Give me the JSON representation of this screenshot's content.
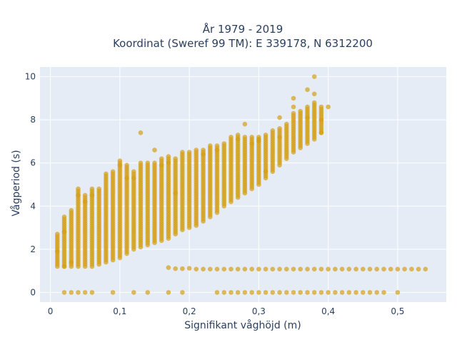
{
  "chart_data": {
    "type": "scatter",
    "title_line1": "År 1979 - 2019",
    "title_line2": "Koordinat (Sweref 99 TM): E 339178, N 6312200",
    "xlabel": "Signifikant våghöjd (m)",
    "ylabel": "Vågperiod (s)",
    "xlim": [
      -0.015,
      0.57
    ],
    "ylim": [
      -0.45,
      10.45
    ],
    "x_ticks": [
      {
        "value": 0,
        "label": "0"
      },
      {
        "value": 0.1,
        "label": "0,1"
      },
      {
        "value": 0.2,
        "label": "0,2"
      },
      {
        "value": 0.3,
        "label": "0,3"
      },
      {
        "value": 0.4,
        "label": "0,4"
      },
      {
        "value": 0.5,
        "label": "0,5"
      }
    ],
    "y_ticks": [
      {
        "value": 0,
        "label": "0"
      },
      {
        "value": 2,
        "label": "2"
      },
      {
        "value": 4,
        "label": "4"
      },
      {
        "value": 6,
        "label": "6"
      },
      {
        "value": 8,
        "label": "8"
      },
      {
        "value": 10,
        "label": "10"
      }
    ],
    "grid": true,
    "colors": {
      "plot_bg": "#e5ecf6",
      "grid": "#ffffff",
      "marker": "#d4a017",
      "text": "#2a3f5f"
    },
    "series": [
      {
        "marker_opacity": 0.7,
        "main_columns": [
          {
            "x": 0.01,
            "ymin": 1.2,
            "ymax": 2.7
          },
          {
            "x": 0.02,
            "ymin": 1.2,
            "ymax": 3.5
          },
          {
            "x": 0.03,
            "ymin": 1.2,
            "ymax": 3.8
          },
          {
            "x": 0.04,
            "ymin": 1.2,
            "ymax": 4.8
          },
          {
            "x": 0.05,
            "ymin": 1.2,
            "ymax": 4.5
          },
          {
            "x": 0.06,
            "ymin": 1.2,
            "ymax": 4.8
          },
          {
            "x": 0.07,
            "ymin": 1.3,
            "ymax": 4.8
          },
          {
            "x": 0.08,
            "ymin": 1.4,
            "ymax": 5.5
          },
          {
            "x": 0.09,
            "ymin": 1.5,
            "ymax": 5.5
          },
          {
            "x": 0.1,
            "ymin": 1.6,
            "ymax": 6.1
          },
          {
            "x": 0.11,
            "ymin": 1.8,
            "ymax": 5.9
          },
          {
            "x": 0.12,
            "ymin": 2.0,
            "ymax": 5.6
          },
          {
            "x": 0.13,
            "ymin": 2.1,
            "ymax": 6.0
          },
          {
            "x": 0.14,
            "ymin": 2.2,
            "ymax": 5.9
          },
          {
            "x": 0.15,
            "ymin": 2.3,
            "ymax": 6.0
          },
          {
            "x": 0.16,
            "ymin": 2.4,
            "ymax": 6.2
          },
          {
            "x": 0.17,
            "ymin": 2.5,
            "ymax": 6.3
          },
          {
            "x": 0.18,
            "ymin": 2.7,
            "ymax": 6.2
          },
          {
            "x": 0.19,
            "ymin": 2.9,
            "ymax": 6.5
          },
          {
            "x": 0.2,
            "ymin": 3.0,
            "ymax": 6.5
          },
          {
            "x": 0.21,
            "ymin": 3.1,
            "ymax": 6.6
          },
          {
            "x": 0.22,
            "ymin": 3.3,
            "ymax": 6.6
          },
          {
            "x": 0.23,
            "ymin": 3.5,
            "ymax": 6.8
          },
          {
            "x": 0.24,
            "ymin": 3.7,
            "ymax": 6.8
          },
          {
            "x": 0.25,
            "ymin": 4.0,
            "ymax": 6.9
          },
          {
            "x": 0.26,
            "ymin": 4.2,
            "ymax": 7.2
          },
          {
            "x": 0.27,
            "ymin": 4.4,
            "ymax": 7.3
          },
          {
            "x": 0.28,
            "ymin": 4.6,
            "ymax": 7.2
          },
          {
            "x": 0.29,
            "ymin": 4.8,
            "ymax": 7.2
          },
          {
            "x": 0.3,
            "ymin": 5.0,
            "ymax": 7.2
          },
          {
            "x": 0.31,
            "ymin": 5.3,
            "ymax": 7.3
          },
          {
            "x": 0.32,
            "ymin": 5.6,
            "ymax": 7.5
          },
          {
            "x": 0.33,
            "ymin": 5.9,
            "ymax": 7.6
          },
          {
            "x": 0.34,
            "ymin": 6.2,
            "ymax": 7.8
          },
          {
            "x": 0.35,
            "ymin": 6.5,
            "ymax": 8.3
          },
          {
            "x": 0.36,
            "ymin": 6.7,
            "ymax": 8.4
          },
          {
            "x": 0.37,
            "ymin": 6.9,
            "ymax": 8.6
          },
          {
            "x": 0.38,
            "ymin": 7.1,
            "ymax": 8.8
          },
          {
            "x": 0.39,
            "ymin": 7.4,
            "ymax": 8.6
          }
        ],
        "outliers": [
          [
            0.01,
            1.9
          ],
          [
            0.02,
            2.8
          ],
          [
            0.04,
            4.5
          ],
          [
            0.05,
            4.2
          ],
          [
            0.06,
            4.5
          ],
          [
            0.09,
            5.6
          ],
          [
            0.1,
            5.9
          ],
          [
            0.11,
            5.3
          ],
          [
            0.12,
            5.3
          ],
          [
            0.13,
            7.4
          ],
          [
            0.14,
            6.0
          ],
          [
            0.15,
            6.6
          ],
          [
            0.16,
            5.9
          ],
          [
            0.17,
            6.0
          ],
          [
            0.22,
            6.4
          ],
          [
            0.24,
            6.6
          ],
          [
            0.27,
            7.1
          ],
          [
            0.28,
            7.8
          ],
          [
            0.29,
            6.9
          ],
          [
            0.3,
            7.0
          ],
          [
            0.31,
            5.6
          ],
          [
            0.33,
            7.2
          ],
          [
            0.33,
            8.1
          ],
          [
            0.35,
            8.6
          ],
          [
            0.35,
            9.0
          ],
          [
            0.37,
            8.1
          ],
          [
            0.37,
            9.4
          ],
          [
            0.38,
            10.0
          ],
          [
            0.38,
            9.2
          ],
          [
            0.39,
            8.0
          ],
          [
            0.39,
            7.4
          ],
          [
            0.4,
            8.6
          ],
          [
            0.02,
            1.2
          ],
          [
            0.03,
            1.4
          ],
          [
            0.18,
            4.6
          ],
          [
            0.3,
            7.1
          ]
        ],
        "low_band": {
          "x": [
            0.17,
            0.18,
            0.19,
            0.2,
            0.21,
            0.22,
            0.23,
            0.24,
            0.25,
            0.26,
            0.27,
            0.28,
            0.29,
            0.3,
            0.31,
            0.32,
            0.33,
            0.34,
            0.35,
            0.36,
            0.37,
            0.38,
            0.39,
            0.4,
            0.41,
            0.42,
            0.43,
            0.44,
            0.45,
            0.46,
            0.47,
            0.48,
            0.49,
            0.5,
            0.51,
            0.52,
            0.53,
            0.54
          ],
          "y": [
            1.15,
            1.1,
            1.1,
            1.12,
            1.08,
            1.08,
            1.08,
            1.08,
            1.08,
            1.08,
            1.08,
            1.08,
            1.08,
            1.08,
            1.08,
            1.08,
            1.08,
            1.08,
            1.08,
            1.08,
            1.08,
            1.08,
            1.08,
            1.08,
            1.08,
            1.08,
            1.08,
            1.08,
            1.08,
            1.08,
            1.08,
            1.08,
            1.08,
            1.08,
            1.08,
            1.08,
            1.08,
            1.08
          ]
        },
        "zero_band": {
          "x": [
            0.02,
            0.03,
            0.04,
            0.05,
            0.06,
            0.09,
            0.12,
            0.14,
            0.17,
            0.19,
            0.24,
            0.25,
            0.26,
            0.27,
            0.28,
            0.29,
            0.3,
            0.31,
            0.32,
            0.33,
            0.34,
            0.35,
            0.36,
            0.37,
            0.38,
            0.39,
            0.4,
            0.41,
            0.42,
            0.43,
            0.44,
            0.45,
            0.46,
            0.47,
            0.48,
            0.5
          ],
          "y": 0
        }
      }
    ]
  }
}
